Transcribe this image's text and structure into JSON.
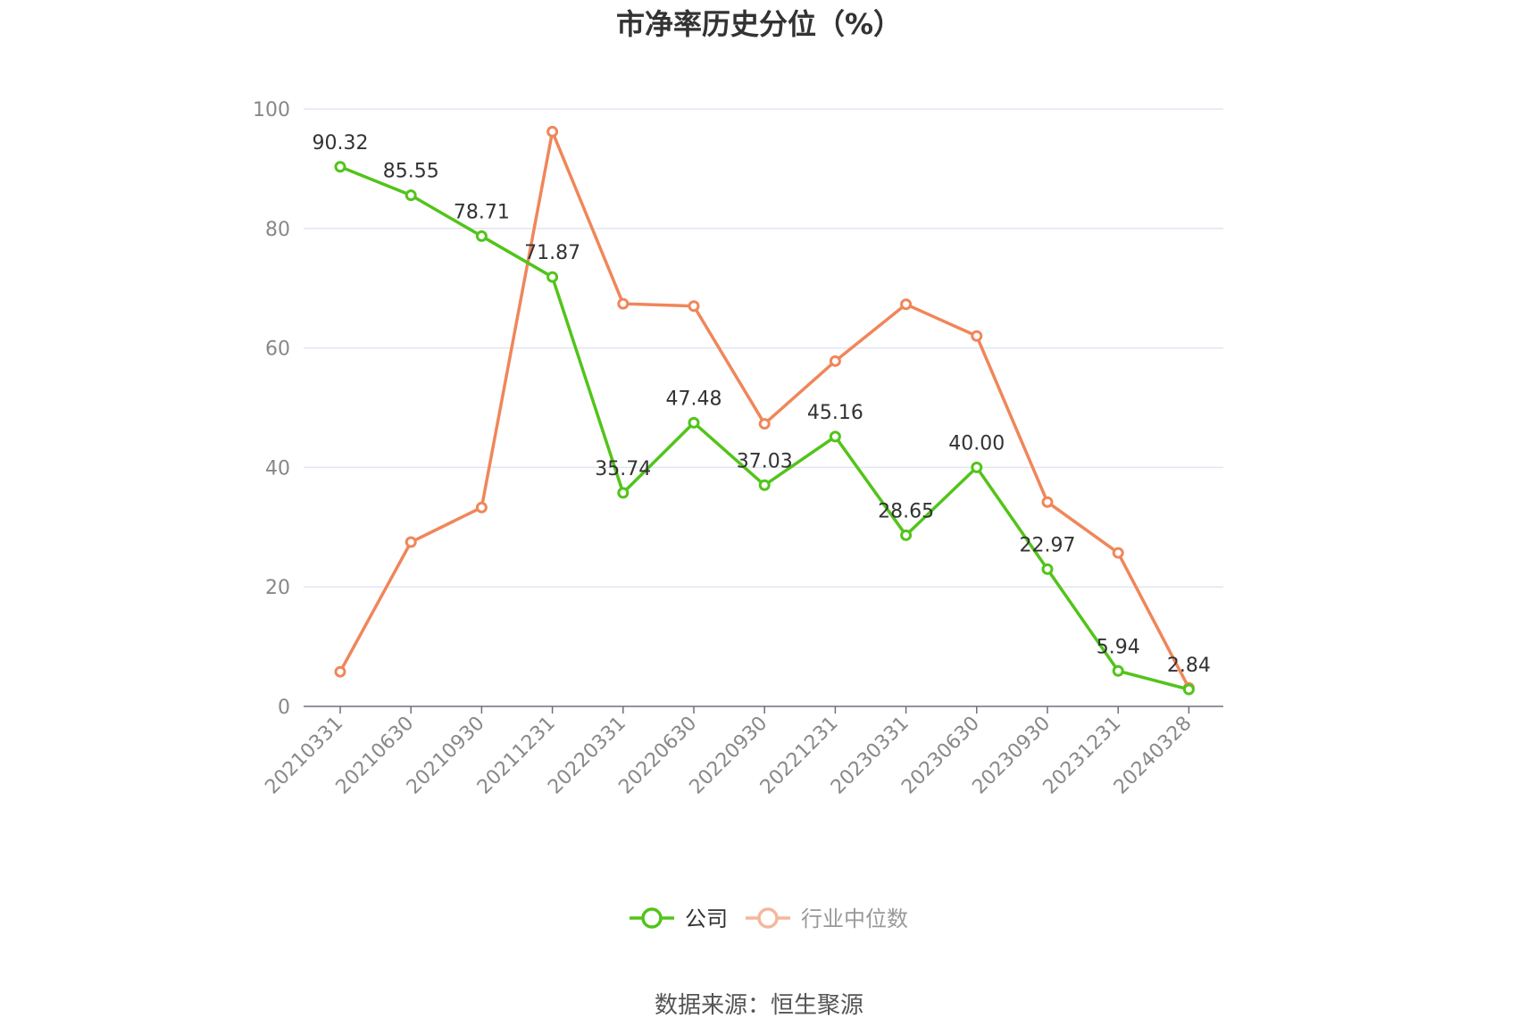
{
  "chart_data": {
    "type": "line",
    "title": "市净率历史分位（%）",
    "categories": [
      "20210331",
      "20210630",
      "20210930",
      "20211231",
      "20220331",
      "20220630",
      "20220930",
      "20221231",
      "20230331",
      "20230630",
      "20230930",
      "20231231",
      "20240328"
    ],
    "ylim": [
      0,
      100
    ],
    "yticks": [
      0,
      20,
      40,
      60,
      80,
      100
    ],
    "grid": true,
    "legend_position": "bottom-center",
    "series": [
      {
        "name": "公司",
        "color": "#52c41a",
        "values": [
          90.32,
          85.55,
          78.71,
          71.87,
          35.74,
          47.48,
          37.03,
          45.16,
          28.65,
          40.0,
          22.97,
          5.94,
          2.84
        ],
        "labels": [
          "90.32",
          "85.55",
          "78.71",
          "71.87",
          "35.74",
          "47.48",
          "37.03",
          "45.16",
          "28.65",
          "40.00",
          "22.97",
          "5.94",
          "2.84"
        ]
      },
      {
        "name": "行业中位数",
        "color": "#f0865a",
        "values": [
          5.8,
          27.5,
          33.3,
          96.2,
          67.4,
          67.0,
          47.3,
          57.8,
          67.3,
          62.0,
          34.2,
          25.7,
          3.1
        ]
      }
    ]
  },
  "source": "数据来源：恒生聚源"
}
